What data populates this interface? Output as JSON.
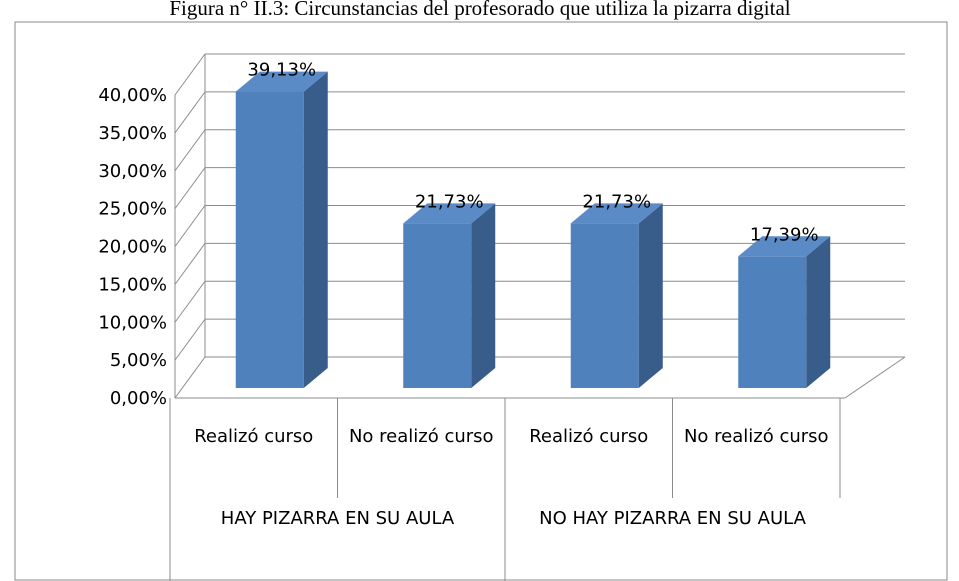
{
  "chart_data": {
    "type": "bar3d",
    "title": "Figura n° II.3: Circunstancias del profesorado que utiliza la pizarra digital",
    "categories": [
      "Realizó curso",
      "No realizó curso",
      "Realizó curso",
      "No realizó curso"
    ],
    "groups": [
      "HAY PIZARRA EN SU AULA",
      "NO HAY PIZARRA EN SU AULA"
    ],
    "values": [
      39.13,
      21.73,
      21.73,
      17.39
    ],
    "value_labels": [
      "39,13%",
      "21,73%",
      "21,73%",
      "17,39%"
    ],
    "color": "#4f81bd",
    "ylim": [
      0,
      40
    ],
    "yticks": [
      {
        "value": 0,
        "label": "0,00%"
      },
      {
        "value": 5,
        "label": "5,00%"
      },
      {
        "value": 10,
        "label": "10,00%"
      },
      {
        "value": 15,
        "label": "15,00%"
      },
      {
        "value": 20,
        "label": "20,00%"
      },
      {
        "value": 25,
        "label": "25,00%"
      },
      {
        "value": 30,
        "label": "30,00%"
      },
      {
        "value": 35,
        "label": "35,00%"
      },
      {
        "value": 40,
        "label": "40,00%"
      }
    ],
    "grid": true
  }
}
